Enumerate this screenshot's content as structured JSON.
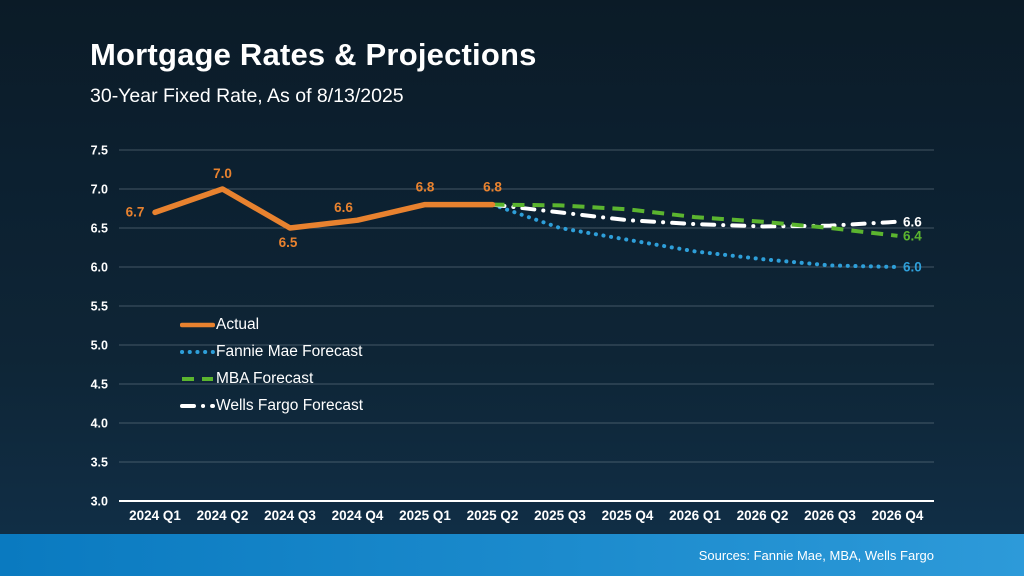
{
  "slide": {
    "title": "Mortgage Rates & Projections",
    "subtitle": "30-Year Fixed Rate, As of 8/13/2025",
    "footer_sources": "Sources: Fannie Mae, MBA, Wells Fargo"
  },
  "colors": {
    "background_top": "#0B1B27",
    "background_bottom": "#113049",
    "footer_bar_left": "#0A7AC0",
    "footer_bar_right": "#2D9AD9",
    "text": "#FFFFFF",
    "gridline": "#7A8A96",
    "axis_line": "#FFFFFF",
    "actual": "#E8822F",
    "fannie_mae": "#2E9FD9",
    "mba": "#5BB52F",
    "wells_fargo": "#FFFFFF"
  },
  "chart_data": {
    "type": "line",
    "title": "Mortgage Rates & Projections",
    "subtitle": "30-Year Fixed Rate, As of 8/13/2025",
    "categories": [
      "2024 Q1",
      "2024 Q2",
      "2024 Q3",
      "2024 Q4",
      "2025 Q1",
      "2025 Q2",
      "2025 Q3",
      "2025 Q4",
      "2026 Q1",
      "2026 Q2",
      "2026 Q3",
      "2026 Q4"
    ],
    "xlabel": "",
    "ylabel": "",
    "ylim": [
      3.0,
      7.5
    ],
    "yticks": [
      "3.0",
      "3.5",
      "4.0",
      "4.5",
      "5.0",
      "5.5",
      "6.0",
      "6.5",
      "7.0",
      "7.5"
    ],
    "grid": true,
    "legend_position": "inside-left-middle",
    "series": [
      {
        "name": "Actual",
        "color": "#E8822F",
        "style": "solid",
        "start_index": 0,
        "values": [
          6.7,
          7.0,
          6.5,
          6.6,
          6.8,
          6.8
        ],
        "point_labels": [
          "6.7",
          "7.0",
          "6.5",
          "6.6",
          "6.8",
          "6.8"
        ]
      },
      {
        "name": "Fannie Mae Forecast",
        "color": "#2E9FD9",
        "style": "dotted",
        "start_index": 5,
        "values": [
          6.8,
          6.5,
          6.35,
          6.2,
          6.1,
          6.02,
          6.0
        ],
        "end_label": "6.0"
      },
      {
        "name": "MBA Forecast",
        "color": "#5BB52F",
        "style": "dashed",
        "start_index": 5,
        "values": [
          6.8,
          6.79,
          6.74,
          6.64,
          6.58,
          6.5,
          6.4
        ],
        "end_label": "6.4"
      },
      {
        "name": "Wells Fargo Forecast",
        "color": "#FFFFFF",
        "style": "dashdot",
        "start_index": 5,
        "values": [
          6.8,
          6.7,
          6.6,
          6.55,
          6.52,
          6.53,
          6.58
        ],
        "end_label": "6.6"
      }
    ]
  }
}
